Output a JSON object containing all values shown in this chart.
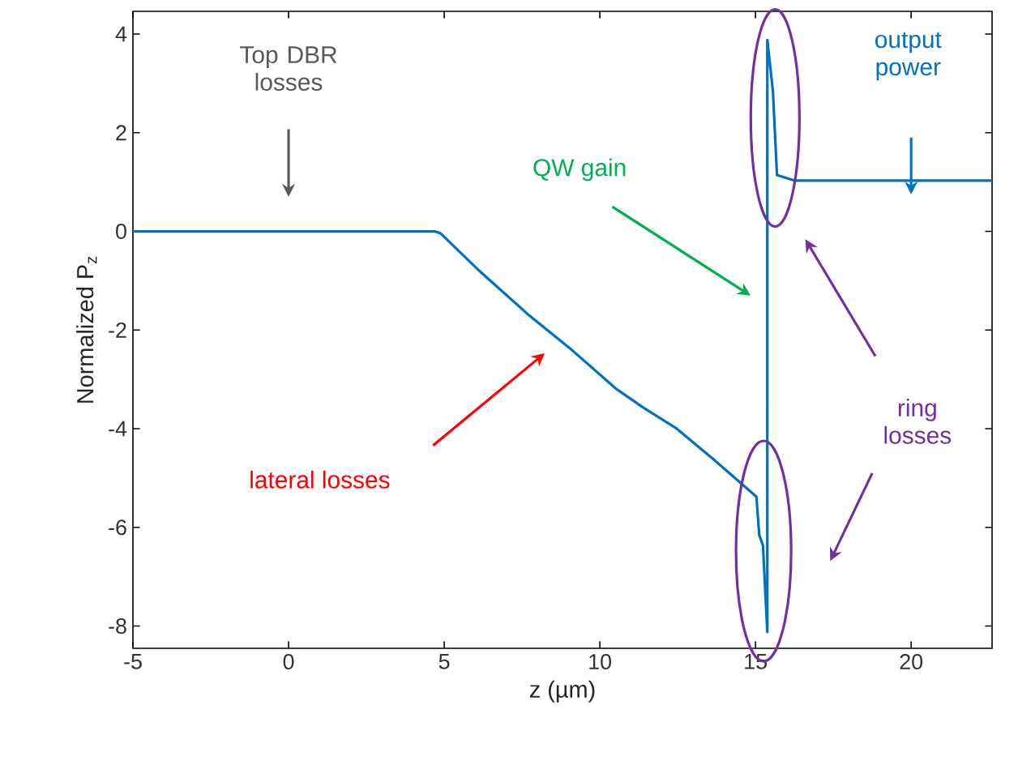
{
  "chart_data": {
    "type": "line",
    "xlabel": "z (µm)",
    "ylabel": "Normalized P$_{z}$",
    "x": [
      -5,
      4.7,
      4.88,
      6.18,
      7.74,
      9.13,
      10.52,
      11.39,
      12.43,
      13.65,
      15.03,
      15.12,
      15.24,
      15.38,
      15.38,
      15.56,
      15.69,
      16.25,
      22.6
    ],
    "series": [
      {
        "color": "#0070c0",
        "values": [
          0,
          0,
          -0.04,
          -0.83,
          -1.71,
          -2.42,
          -3.19,
          -3.57,
          -3.98,
          -4.62,
          -5.38,
          -6.15,
          -6.37,
          -8.12,
          3.88,
          2.84,
          1.14,
          1.03,
          1.03
        ]
      }
    ],
    "xlim": [
      -5,
      22.6
    ],
    "ylim": [
      -8.45,
      4.46
    ],
    "xticks": [
      -5,
      0,
      5,
      10,
      15,
      20
    ],
    "yticks": [
      -8,
      -6,
      -4,
      -2,
      0,
      2,
      4
    ],
    "grid": false,
    "marker": "none",
    "line_style": "solid",
    "annotations": [
      "Top DBR losses",
      "QW gain",
      "lateral losses",
      "output power",
      "ring losses"
    ]
  }
}
